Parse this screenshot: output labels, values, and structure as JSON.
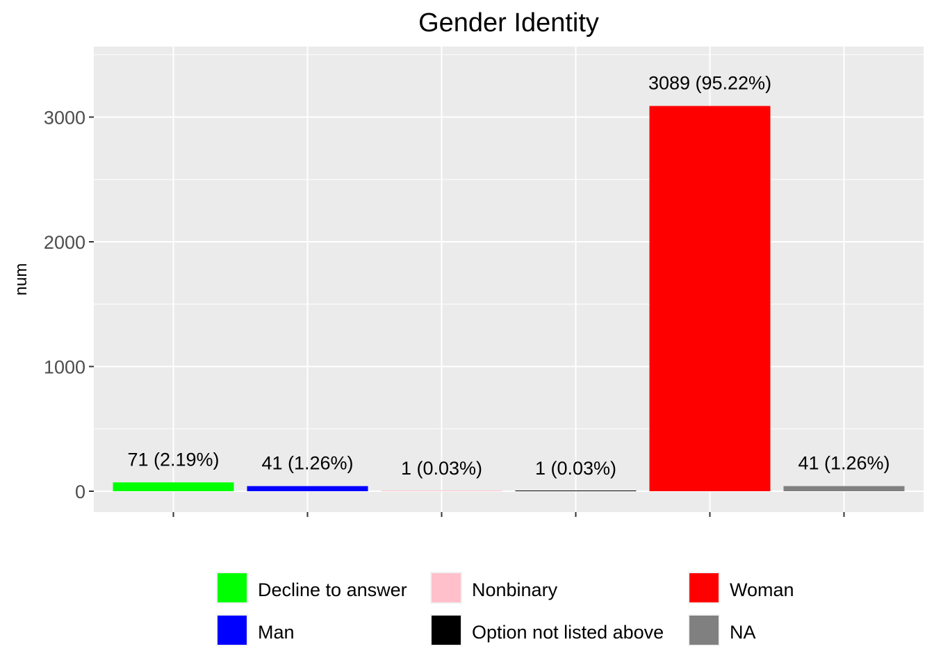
{
  "chart_data": {
    "type": "bar",
    "title": "Gender Identity",
    "xlabel": "",
    "ylabel": "num",
    "ylim": [
      0,
      3500
    ],
    "yticks": [
      0,
      1000,
      2000,
      3000
    ],
    "grid": true,
    "legend_position": "bottom",
    "categories": [
      "Decline to answer",
      "Man",
      "Nonbinary",
      "Option not listed above",
      "Woman",
      "NA"
    ],
    "values": [
      71,
      41,
      1,
      1,
      3089,
      41
    ],
    "labels": [
      "71 (2.19%)",
      "41 (1.26%)",
      "1 (0.03%)",
      "1 (0.03%)",
      "3089 (95.22%)",
      "41 (1.26%)"
    ],
    "colors": [
      "#00ff00",
      "#0000ff",
      "#ffc0cb",
      "#000000",
      "#ff0000",
      "#808080"
    ]
  }
}
